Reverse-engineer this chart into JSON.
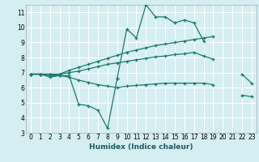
{
  "xlabel": "Humidex (Indice chaleur)",
  "background_color": "#d4eef1",
  "grid_color": "#ffffff",
  "line_color": "#1a7a6e",
  "x_values": [
    0,
    1,
    2,
    3,
    4,
    5,
    6,
    7,
    8,
    9,
    10,
    11,
    12,
    13,
    14,
    15,
    16,
    17,
    18,
    19,
    20,
    21,
    22,
    23
  ],
  "ylim": [
    3,
    11.5
  ],
  "xlim": [
    -0.5,
    23.5
  ],
  "series": {
    "line_spike": [
      6.9,
      6.9,
      6.8,
      6.8,
      null,
      null,
      null,
      null,
      null,
      6.6,
      9.9,
      9.3,
      11.5,
      10.7,
      10.7,
      10.3,
      10.5,
      10.3,
      9.1,
      null,
      null,
      null,
      null,
      null
    ],
    "line_dip": [
      6.9,
      6.9,
      6.7,
      6.8,
      6.8,
      4.9,
      4.8,
      4.5,
      3.3,
      6.6,
      null,
      null,
      null,
      null,
      null,
      null,
      null,
      null,
      null,
      null,
      null,
      null,
      null,
      null
    ],
    "line_upper": [
      6.9,
      6.9,
      6.9,
      6.9,
      7.15,
      7.35,
      7.55,
      7.75,
      7.95,
      8.15,
      8.35,
      8.5,
      8.65,
      8.8,
      8.9,
      9.0,
      9.1,
      9.2,
      9.3,
      9.4,
      null,
      null,
      null,
      null
    ],
    "line_mid": [
      6.9,
      6.9,
      6.9,
      6.9,
      7.0,
      7.1,
      7.25,
      7.4,
      7.55,
      7.65,
      7.75,
      7.85,
      7.95,
      8.05,
      8.1,
      8.2,
      8.25,
      8.35,
      8.1,
      7.9,
      null,
      null,
      6.9,
      6.3
    ],
    "line_lower": [
      6.9,
      6.9,
      6.9,
      6.8,
      6.7,
      6.5,
      6.35,
      6.2,
      6.1,
      6.0,
      6.1,
      6.15,
      6.2,
      6.25,
      6.3,
      6.3,
      6.3,
      6.3,
      6.3,
      6.2,
      null,
      null,
      5.5,
      5.4
    ]
  }
}
